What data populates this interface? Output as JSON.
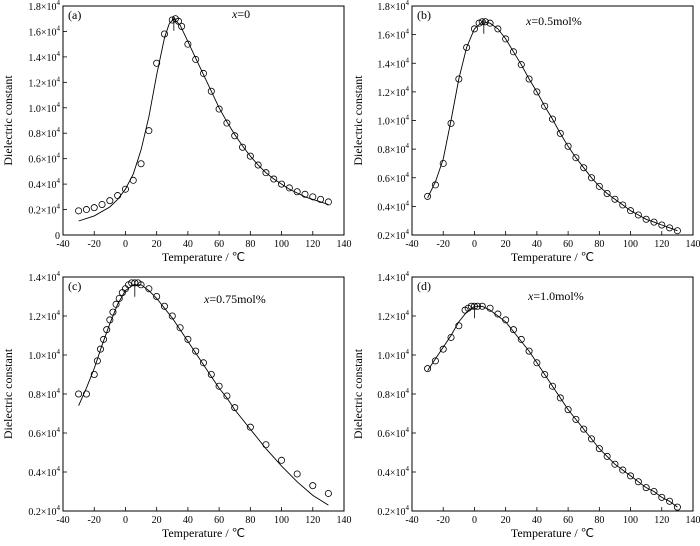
{
  "chart_data": [
    {
      "type": "scatter",
      "panel_label": "(a)",
      "composition_prefix": "x",
      "composition_value": "=0",
      "xlabel": "Temperature / ℃",
      "ylabel": "Dielectric constant",
      "xlim": [
        -40,
        140
      ],
      "ylim": [
        0,
        18000
      ],
      "x_ticks": [
        -40,
        -20,
        0,
        20,
        40,
        60,
        80,
        100,
        120,
        140
      ],
      "y_ticks": [
        {
          "mantissa": "0",
          "exp": ""
        },
        {
          "mantissa": "0.2×10",
          "exp": "4"
        },
        {
          "mantissa": "0.4×10",
          "exp": "4"
        },
        {
          "mantissa": "0.6×10",
          "exp": "4"
        },
        {
          "mantissa": "0.8×10",
          "exp": "4"
        },
        {
          "mantissa": "1.0×10",
          "exp": "4"
        },
        {
          "mantissa": "1.2×10",
          "exp": "4"
        },
        {
          "mantissa": "1.4×10",
          "exp": "4"
        },
        {
          "mantissa": "1.6×10",
          "exp": "4"
        },
        {
          "mantissa": "1.8×10",
          "exp": "4"
        }
      ],
      "peak_x": 31,
      "series": [
        {
          "style": "markers",
          "x": [
            -30,
            -25,
            -20,
            -15,
            -10,
            -5,
            0,
            5,
            10,
            15,
            20,
            25,
            30,
            32,
            34,
            36,
            40,
            45,
            50,
            55,
            60,
            65,
            70,
            75,
            80,
            85,
            90,
            95,
            100,
            105,
            110,
            115,
            120,
            125,
            130
          ],
          "y": [
            1900,
            2000,
            2150,
            2400,
            2700,
            3100,
            3600,
            4300,
            5600,
            8200,
            13500,
            15800,
            16900,
            17000,
            16800,
            16400,
            15000,
            13800,
            12700,
            11300,
            9900,
            8800,
            7800,
            6900,
            6200,
            5500,
            4900,
            4400,
            4000,
            3700,
            3400,
            3200,
            3000,
            2800,
            2600
          ]
        },
        {
          "style": "line",
          "x": [
            -30,
            -20,
            -10,
            -5,
            0,
            5,
            10,
            15,
            20,
            25,
            28,
            31,
            35,
            40,
            45,
            50,
            55,
            60,
            65,
            70,
            75,
            80,
            85,
            90,
            95,
            100,
            105,
            110,
            115,
            120,
            125,
            130
          ],
          "y": [
            1100,
            1500,
            2200,
            2800,
            3600,
            4800,
            6700,
            9300,
            12600,
            15500,
            16600,
            17000,
            16500,
            15200,
            13900,
            12600,
            11300,
            10000,
            8900,
            7900,
            7000,
            6200,
            5500,
            4900,
            4400,
            4000,
            3600,
            3300,
            3000,
            2800,
            2600,
            2400
          ]
        }
      ]
    },
    {
      "type": "scatter",
      "panel_label": "(b)",
      "composition_prefix": "x",
      "composition_value": "=0.5mol%",
      "xlabel": "Temperature / ℃",
      "ylabel": "Dielectric constant",
      "xlim": [
        -40,
        140
      ],
      "ylim": [
        2000,
        18000
      ],
      "x_ticks": [
        -40,
        -20,
        0,
        20,
        40,
        60,
        80,
        100,
        120,
        140
      ],
      "y_ticks": [
        {
          "mantissa": "0.2×10",
          "exp": "4"
        },
        {
          "mantissa": "0.4×10",
          "exp": "4"
        },
        {
          "mantissa": "0.6×10",
          "exp": "4"
        },
        {
          "mantissa": "0.8×10",
          "exp": "4"
        },
        {
          "mantissa": "1.0×10",
          "exp": "4"
        },
        {
          "mantissa": "1.2×10",
          "exp": "4"
        },
        {
          "mantissa": "1.4×10",
          "exp": "4"
        },
        {
          "mantissa": "1.6×10",
          "exp": "4"
        },
        {
          "mantissa": "1.8×10",
          "exp": "4"
        }
      ],
      "peak_x": 6,
      "series": [
        {
          "style": "markers",
          "x": [
            -30,
            -25,
            -20,
            -15,
            -10,
            -5,
            0,
            3,
            5,
            7,
            10,
            15,
            20,
            25,
            30,
            35,
            40,
            45,
            50,
            55,
            60,
            65,
            70,
            75,
            80,
            85,
            90,
            95,
            100,
            105,
            110,
            115,
            120,
            125,
            130
          ],
          "y": [
            4700,
            5500,
            7000,
            9800,
            12900,
            15100,
            16400,
            16800,
            16900,
            16900,
            16800,
            16400,
            15700,
            14800,
            13900,
            12900,
            12000,
            11000,
            10100,
            9100,
            8200,
            7400,
            6700,
            6000,
            5400,
            4900,
            4500,
            4100,
            3700,
            3400,
            3100,
            2900,
            2700,
            2500,
            2300
          ]
        },
        {
          "style": "line",
          "x": [
            -30,
            -25,
            -20,
            -15,
            -10,
            -5,
            0,
            5,
            10,
            15,
            20,
            25,
            30,
            35,
            40,
            45,
            50,
            55,
            60,
            65,
            70,
            75,
            80,
            85,
            90,
            95,
            100,
            105,
            110,
            115,
            120,
            125,
            130
          ],
          "y": [
            4600,
            5700,
            7300,
            10000,
            12900,
            15100,
            16400,
            16900,
            16800,
            16400,
            15700,
            14800,
            13900,
            12900,
            12000,
            11000,
            10100,
            9100,
            8200,
            7400,
            6700,
            6000,
            5400,
            4900,
            4500,
            4100,
            3700,
            3400,
            3100,
            2900,
            2700,
            2500,
            2300
          ]
        }
      ]
    },
    {
      "type": "scatter",
      "panel_label": "(c)",
      "composition_prefix": "x",
      "composition_value": "=0.75mol%",
      "xlabel": "Temperature / ℃",
      "ylabel": "Dielectric constant",
      "xlim": [
        -40,
        140
      ],
      "ylim": [
        2000,
        14000
      ],
      "x_ticks": [
        -40,
        -20,
        0,
        20,
        40,
        60,
        80,
        100,
        120,
        140
      ],
      "y_ticks": [
        {
          "mantissa": "0.2×10",
          "exp": "4"
        },
        {
          "mantissa": "0.4×10",
          "exp": "4"
        },
        {
          "mantissa": "0.6×10",
          "exp": "4"
        },
        {
          "mantissa": "0.8×10",
          "exp": "4"
        },
        {
          "mantissa": "1.0×10",
          "exp": "4"
        },
        {
          "mantissa": "1.2×10",
          "exp": "4"
        },
        {
          "mantissa": "1.4×10",
          "exp": "4"
        }
      ],
      "peak_x": 6,
      "series": [
        {
          "style": "markers",
          "x": [
            -30,
            -25,
            -20,
            -18,
            -16,
            -14,
            -12,
            -10,
            -8,
            -6,
            -4,
            -2,
            0,
            2,
            4,
            6,
            8,
            10,
            15,
            20,
            25,
            30,
            35,
            40,
            45,
            50,
            55,
            60,
            65,
            70,
            80,
            90,
            100,
            110,
            120,
            130
          ],
          "y": [
            8000,
            8000,
            9000,
            9700,
            10300,
            10800,
            11300,
            11800,
            12200,
            12600,
            12900,
            13200,
            13400,
            13600,
            13700,
            13700,
            13700,
            13600,
            13400,
            13000,
            12500,
            12000,
            11400,
            10800,
            10200,
            9600,
            9000,
            8400,
            7900,
            7300,
            6300,
            5400,
            4600,
            3900,
            3300,
            2900
          ]
        },
        {
          "style": "line",
          "x": [
            -30,
            -25,
            -20,
            -15,
            -10,
            -5,
            0,
            5,
            10,
            15,
            20,
            25,
            30,
            35,
            40,
            45,
            50,
            55,
            60,
            65,
            70,
            80,
            90,
            100,
            110,
            120,
            130
          ],
          "y": [
            7400,
            8300,
            9300,
            10500,
            11600,
            12600,
            13300,
            13600,
            13600,
            13300,
            12900,
            12400,
            11900,
            11300,
            10700,
            10100,
            9500,
            8900,
            8300,
            7800,
            7200,
            6200,
            5200,
            4300,
            3500,
            2800,
            2300
          ]
        }
      ]
    },
    {
      "type": "scatter",
      "panel_label": "(d)",
      "composition_prefix": "x",
      "composition_value": "=1.0mol%",
      "xlabel": "Temperature / ℃",
      "ylabel": "Dielectric constant",
      "xlim": [
        -40,
        140
      ],
      "ylim": [
        2000,
        14000
      ],
      "x_ticks": [
        -40,
        -20,
        0,
        20,
        40,
        60,
        80,
        100,
        120,
        140
      ],
      "y_ticks": [
        {
          "mantissa": "0.2×10",
          "exp": "4"
        },
        {
          "mantissa": "0.4×10",
          "exp": "4"
        },
        {
          "mantissa": "0.6×10",
          "exp": "4"
        },
        {
          "mantissa": "0.8×10",
          "exp": "4"
        },
        {
          "mantissa": "1.0×10",
          "exp": "4"
        },
        {
          "mantissa": "1.2×10",
          "exp": "4"
        },
        {
          "mantissa": "1.4×10",
          "exp": "4"
        }
      ],
      "peak_x": 0,
      "series": [
        {
          "style": "markers",
          "x": [
            -30,
            -25,
            -20,
            -15,
            -10,
            -6,
            -4,
            -2,
            0,
            2,
            5,
            10,
            15,
            20,
            25,
            30,
            35,
            40,
            45,
            50,
            55,
            60,
            65,
            70,
            75,
            80,
            85,
            90,
            95,
            100,
            105,
            110,
            115,
            120,
            125,
            130
          ],
          "y": [
            9300,
            9700,
            10300,
            10900,
            11500,
            12300,
            12400,
            12500,
            12500,
            12500,
            12500,
            12400,
            12100,
            11800,
            11300,
            10800,
            10200,
            9600,
            9000,
            8400,
            7800,
            7200,
            6700,
            6200,
            5700,
            5200,
            4800,
            4400,
            4100,
            3800,
            3500,
            3200,
            3000,
            2700,
            2500,
            2200
          ]
        },
        {
          "style": "line",
          "x": [
            -30,
            -25,
            -20,
            -15,
            -10,
            -5,
            0,
            5,
            10,
            15,
            20,
            25,
            30,
            35,
            40,
            45,
            50,
            55,
            60,
            65,
            70,
            75,
            80,
            85,
            90,
            95,
            100,
            105,
            110,
            115,
            120,
            125,
            130
          ],
          "y": [
            9200,
            9800,
            10400,
            11000,
            11700,
            12200,
            12500,
            12500,
            12300,
            12000,
            11700,
            11200,
            10700,
            10200,
            9600,
            9000,
            8400,
            7800,
            7200,
            6700,
            6200,
            5700,
            5200,
            4800,
            4400,
            4100,
            3800,
            3500,
            3200,
            3000,
            2700,
            2500,
            2200
          ]
        }
      ]
    }
  ]
}
